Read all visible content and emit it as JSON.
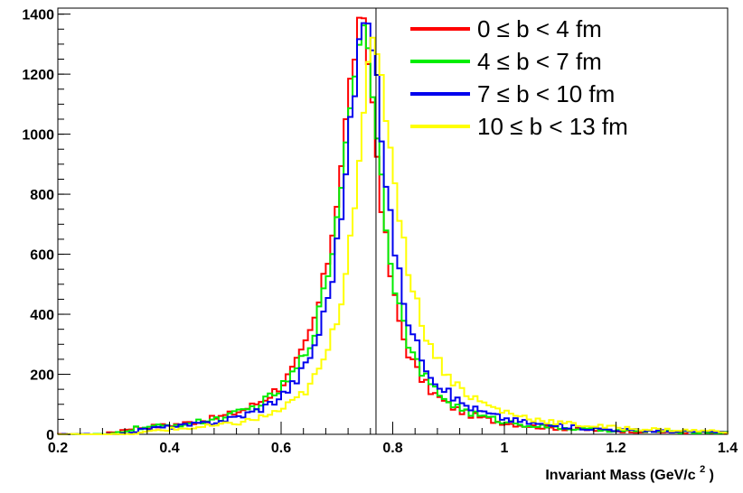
{
  "chart_data": {
    "type": "line",
    "step": true,
    "xlabel": "Invariant Mass (GeV/c",
    "xlabel_sup": "2",
    "xlabel_close": ")",
    "ylabel": "",
    "xlim": [
      0.2,
      1.4
    ],
    "ylim": [
      0,
      1420
    ],
    "x_ticks": [
      0.2,
      0.4,
      0.6,
      0.8,
      1.0,
      1.2,
      1.4
    ],
    "x_tick_labels": [
      "0.2",
      "0.4",
      "0.6",
      "0.8",
      "1",
      "1.2",
      "1.4"
    ],
    "y_ticks": [
      0,
      200,
      400,
      600,
      800,
      1000,
      1200,
      1400
    ],
    "y_tick_labels": [
      "0",
      "200",
      "400",
      "600",
      "800",
      "1000",
      "1200",
      "1400"
    ],
    "vertical_marker": 0.77,
    "grid": false,
    "legend_position": "top-right",
    "series": [
      {
        "name": "0 ≤ b < 4 fm",
        "color": "#ff0000",
        "peak": 1390,
        "peak_x": 0.745,
        "width_left": 0.052,
        "width_right": 0.04,
        "tail_left": 0.1,
        "tail_right": 0.12,
        "onset": 0.28
      },
      {
        "name": "4 ≤ b < 7 fm",
        "color": "#00ee00",
        "peak": 1380,
        "peak_x": 0.748,
        "width_left": 0.051,
        "width_right": 0.042,
        "tail_left": 0.1,
        "tail_right": 0.12,
        "onset": 0.29
      },
      {
        "name": "7 ≤ b < 10 fm",
        "color": "#0000ee",
        "peak": 1410,
        "peak_x": 0.752,
        "width_left": 0.047,
        "width_right": 0.046,
        "tail_left": 0.09,
        "tail_right": 0.13,
        "onset": 0.31
      },
      {
        "name": "10 ≤ b < 13 fm",
        "color": "#ffff00",
        "peak": 1300,
        "peak_x": 0.765,
        "width_left": 0.042,
        "width_right": 0.055,
        "tail_left": 0.08,
        "tail_right": 0.15,
        "onset": 0.33
      }
    ]
  }
}
